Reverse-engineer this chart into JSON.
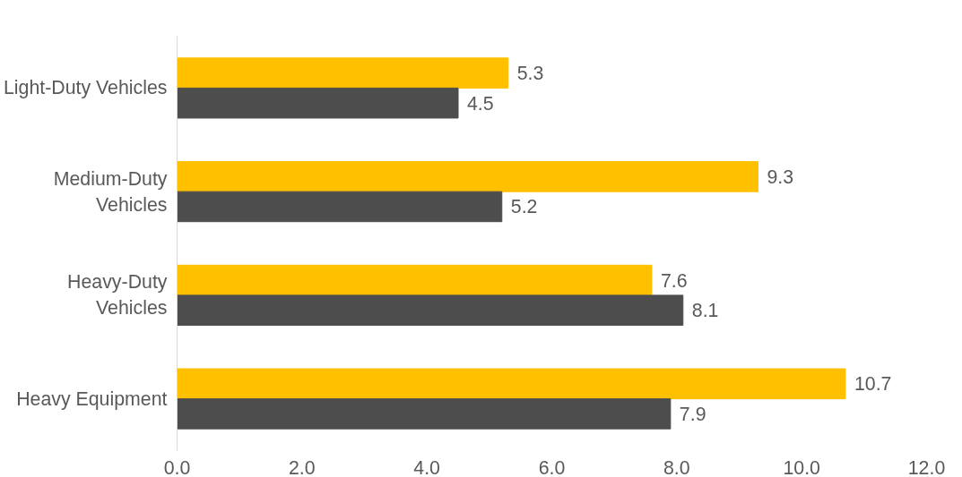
{
  "chart_data": {
    "type": "bar",
    "orientation": "horizontal",
    "categories": [
      "Light-Duty Vehicles",
      "Medium-Duty\nVehicles",
      "Heavy-Duty\nVehicles",
      "Heavy Equipment"
    ],
    "series": [
      {
        "color": "#ffc000",
        "values": [
          5.3,
          9.3,
          7.6,
          10.7
        ]
      },
      {
        "color": "#4d4d4d",
        "values": [
          4.5,
          5.2,
          8.1,
          7.9
        ]
      }
    ],
    "xlim": [
      0,
      12
    ],
    "xticks": [
      {
        "value": 0,
        "label": "0.0"
      },
      {
        "value": 2,
        "label": "2.0"
      },
      {
        "value": 4,
        "label": "4.0"
      },
      {
        "value": 6,
        "label": "6.0"
      },
      {
        "value": 8,
        "label": "8.0"
      },
      {
        "value": 10,
        "label": "10.0"
      },
      {
        "value": 12,
        "label": "12.0"
      }
    ],
    "data_labels": true,
    "grid": false
  }
}
